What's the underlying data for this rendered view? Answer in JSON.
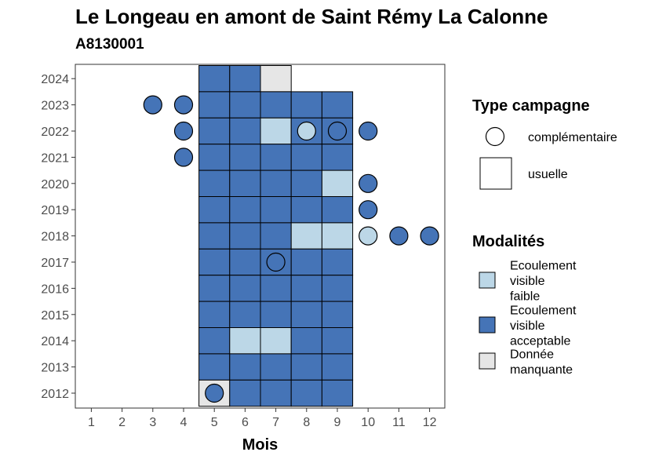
{
  "chart_data": {
    "type": "heatmap",
    "title": "Le Longeau en amont de Saint Rémy La Calonne",
    "subtitle": "A8130001",
    "xlabel": "Mois",
    "ylabel": "",
    "x_ticks": [
      1,
      2,
      3,
      4,
      5,
      6,
      7,
      8,
      9,
      10,
      11,
      12
    ],
    "y_ticks": [
      2012,
      2013,
      2014,
      2015,
      2016,
      2017,
      2018,
      2019,
      2020,
      2021,
      2022,
      2023,
      2024
    ],
    "xlim": [
      0.5,
      12.5
    ],
    "ylim": [
      2011.4,
      2024.6
    ],
    "grid": false,
    "colors": {
      "Ecoulement visible faible": "#bcd7e7",
      "Ecoulement visible acceptable": "#4574b7",
      "Donnée manquante": "#e6e6e6"
    },
    "usuelle": [
      {
        "year": 2024,
        "month": 5,
        "modalite": "Ecoulement visible acceptable"
      },
      {
        "year": 2024,
        "month": 6,
        "modalite": "Ecoulement visible acceptable"
      },
      {
        "year": 2024,
        "month": 7,
        "modalite": "Donnée manquante"
      },
      {
        "year": 2023,
        "month": 5,
        "modalite": "Ecoulement visible acceptable"
      },
      {
        "year": 2023,
        "month": 6,
        "modalite": "Ecoulement visible acceptable"
      },
      {
        "year": 2023,
        "month": 7,
        "modalite": "Ecoulement visible acceptable"
      },
      {
        "year": 2023,
        "month": 8,
        "modalite": "Ecoulement visible acceptable"
      },
      {
        "year": 2023,
        "month": 9,
        "modalite": "Ecoulement visible acceptable"
      },
      {
        "year": 2022,
        "month": 5,
        "modalite": "Ecoulement visible acceptable"
      },
      {
        "year": 2022,
        "month": 6,
        "modalite": "Ecoulement visible acceptable"
      },
      {
        "year": 2022,
        "month": 7,
        "modalite": "Ecoulement visible faible"
      },
      {
        "year": 2022,
        "month": 8,
        "modalite": "Ecoulement visible acceptable"
      },
      {
        "year": 2022,
        "month": 9,
        "modalite": "Ecoulement visible acceptable"
      },
      {
        "year": 2021,
        "month": 5,
        "modalite": "Ecoulement visible acceptable"
      },
      {
        "year": 2021,
        "month": 6,
        "modalite": "Ecoulement visible acceptable"
      },
      {
        "year": 2021,
        "month": 7,
        "modalite": "Ecoulement visible acceptable"
      },
      {
        "year": 2021,
        "month": 8,
        "modalite": "Ecoulement visible acceptable"
      },
      {
        "year": 2021,
        "month": 9,
        "modalite": "Ecoulement visible acceptable"
      },
      {
        "year": 2020,
        "month": 5,
        "modalite": "Ecoulement visible acceptable"
      },
      {
        "year": 2020,
        "month": 6,
        "modalite": "Ecoulement visible acceptable"
      },
      {
        "year": 2020,
        "month": 7,
        "modalite": "Ecoulement visible acceptable"
      },
      {
        "year": 2020,
        "month": 8,
        "modalite": "Ecoulement visible acceptable"
      },
      {
        "year": 2020,
        "month": 9,
        "modalite": "Ecoulement visible faible"
      },
      {
        "year": 2019,
        "month": 5,
        "modalite": "Ecoulement visible acceptable"
      },
      {
        "year": 2019,
        "month": 6,
        "modalite": "Ecoulement visible acceptable"
      },
      {
        "year": 2019,
        "month": 7,
        "modalite": "Ecoulement visible acceptable"
      },
      {
        "year": 2019,
        "month": 8,
        "modalite": "Ecoulement visible acceptable"
      },
      {
        "year": 2019,
        "month": 9,
        "modalite": "Ecoulement visible acceptable"
      },
      {
        "year": 2018,
        "month": 5,
        "modalite": "Ecoulement visible acceptable"
      },
      {
        "year": 2018,
        "month": 6,
        "modalite": "Ecoulement visible acceptable"
      },
      {
        "year": 2018,
        "month": 7,
        "modalite": "Ecoulement visible acceptable"
      },
      {
        "year": 2018,
        "month": 8,
        "modalite": "Ecoulement visible faible"
      },
      {
        "year": 2018,
        "month": 9,
        "modalite": "Ecoulement visible faible"
      },
      {
        "year": 2017,
        "month": 5,
        "modalite": "Ecoulement visible acceptable"
      },
      {
        "year": 2017,
        "month": 6,
        "modalite": "Ecoulement visible acceptable"
      },
      {
        "year": 2017,
        "month": 7,
        "modalite": "Ecoulement visible acceptable"
      },
      {
        "year": 2017,
        "month": 8,
        "modalite": "Ecoulement visible acceptable"
      },
      {
        "year": 2017,
        "month": 9,
        "modalite": "Ecoulement visible acceptable"
      },
      {
        "year": 2016,
        "month": 5,
        "modalite": "Ecoulement visible acceptable"
      },
      {
        "year": 2016,
        "month": 6,
        "modalite": "Ecoulement visible acceptable"
      },
      {
        "year": 2016,
        "month": 7,
        "modalite": "Ecoulement visible acceptable"
      },
      {
        "year": 2016,
        "month": 8,
        "modalite": "Ecoulement visible acceptable"
      },
      {
        "year": 2016,
        "month": 9,
        "modalite": "Ecoulement visible acceptable"
      },
      {
        "year": 2015,
        "month": 5,
        "modalite": "Ecoulement visible acceptable"
      },
      {
        "year": 2015,
        "month": 6,
        "modalite": "Ecoulement visible acceptable"
      },
      {
        "year": 2015,
        "month": 7,
        "modalite": "Ecoulement visible acceptable"
      },
      {
        "year": 2015,
        "month": 8,
        "modalite": "Ecoulement visible acceptable"
      },
      {
        "year": 2015,
        "month": 9,
        "modalite": "Ecoulement visible acceptable"
      },
      {
        "year": 2014,
        "month": 5,
        "modalite": "Ecoulement visible acceptable"
      },
      {
        "year": 2014,
        "month": 6,
        "modalite": "Ecoulement visible faible"
      },
      {
        "year": 2014,
        "month": 7,
        "modalite": "Ecoulement visible faible"
      },
      {
        "year": 2014,
        "month": 8,
        "modalite": "Ecoulement visible acceptable"
      },
      {
        "year": 2014,
        "month": 9,
        "modalite": "Ecoulement visible acceptable"
      },
      {
        "year": 2013,
        "month": 5,
        "modalite": "Ecoulement visible acceptable"
      },
      {
        "year": 2013,
        "month": 6,
        "modalite": "Ecoulement visible acceptable"
      },
      {
        "year": 2013,
        "month": 7,
        "modalite": "Ecoulement visible acceptable"
      },
      {
        "year": 2013,
        "month": 8,
        "modalite": "Ecoulement visible acceptable"
      },
      {
        "year": 2013,
        "month": 9,
        "modalite": "Ecoulement visible acceptable"
      },
      {
        "year": 2012,
        "month": 5,
        "modalite": "Donnée manquante"
      },
      {
        "year": 2012,
        "month": 6,
        "modalite": "Ecoulement visible acceptable"
      },
      {
        "year": 2012,
        "month": 7,
        "modalite": "Ecoulement visible acceptable"
      },
      {
        "year": 2012,
        "month": 8,
        "modalite": "Ecoulement visible acceptable"
      },
      {
        "year": 2012,
        "month": 9,
        "modalite": "Ecoulement visible acceptable"
      }
    ],
    "complementaire": [
      {
        "year": 2023,
        "month": 3,
        "modalite": "Ecoulement visible acceptable"
      },
      {
        "year": 2023,
        "month": 4,
        "modalite": "Ecoulement visible acceptable"
      },
      {
        "year": 2022,
        "month": 4,
        "modalite": "Ecoulement visible acceptable"
      },
      {
        "year": 2022,
        "month": 8,
        "modalite": "Ecoulement visible faible"
      },
      {
        "year": 2022,
        "month": 9,
        "modalite": "Ecoulement visible acceptable"
      },
      {
        "year": 2022,
        "month": 10,
        "modalite": "Ecoulement visible acceptable"
      },
      {
        "year": 2021,
        "month": 4,
        "modalite": "Ecoulement visible acceptable"
      },
      {
        "year": 2020,
        "month": 10,
        "modalite": "Ecoulement visible acceptable"
      },
      {
        "year": 2019,
        "month": 10,
        "modalite": "Ecoulement visible acceptable"
      },
      {
        "year": 2018,
        "month": 10,
        "modalite": "Ecoulement visible faible"
      },
      {
        "year": 2018,
        "month": 11,
        "modalite": "Ecoulement visible acceptable"
      },
      {
        "year": 2018,
        "month": 12,
        "modalite": "Ecoulement visible acceptable"
      },
      {
        "year": 2017,
        "month": 7,
        "modalite": "Ecoulement visible acceptable"
      },
      {
        "year": 2012,
        "month": 5,
        "modalite": "Ecoulement visible acceptable"
      }
    ],
    "legend": {
      "placement": "right",
      "type_title": "Type campagne",
      "type_entries": [
        {
          "key": "complementaire",
          "label": "complémentaire"
        },
        {
          "key": "usuelle",
          "label": "usuelle"
        }
      ],
      "modalite_title": "Modalités",
      "modalite_entries": [
        {
          "key": "Ecoulement visible faible",
          "lines": [
            "Ecoulement",
            "visible",
            "faible"
          ]
        },
        {
          "key": "Ecoulement visible acceptable",
          "lines": [
            "Ecoulement",
            "visible",
            "acceptable"
          ]
        },
        {
          "key": "Donnée manquante",
          "lines": [
            "Donnée",
            "manquante"
          ]
        }
      ]
    }
  }
}
